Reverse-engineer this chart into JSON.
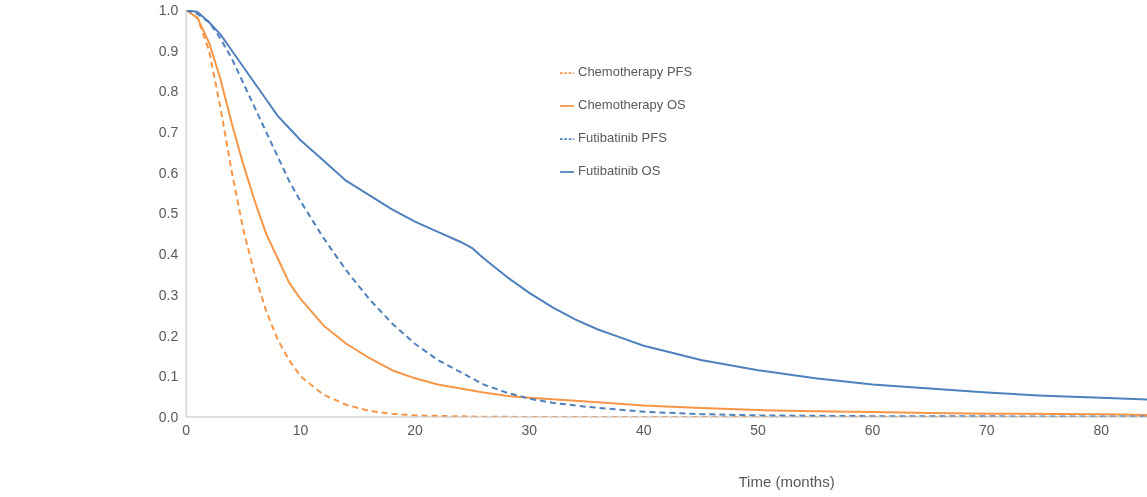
{
  "chart_data": {
    "type": "line",
    "xlabel": "Time (months)",
    "xlim": [
      0,
      84
    ],
    "xticks": [
      0,
      10,
      20,
      30,
      40,
      50,
      60,
      70,
      80
    ],
    "ylim": [
      0,
      1
    ],
    "yticks": [
      {
        "value": 0,
        "label": "0.0"
      },
      0.1,
      0.2,
      0.3,
      0.4,
      0.5,
      0.6,
      0.7,
      0.8,
      0.9,
      {
        "value": 1,
        "label": "1.0"
      }
    ],
    "legend": "top",
    "marker": "none",
    "series": [
      {
        "name": "Chemotherapy PFS",
        "color": "#f79646",
        "line_style": "dashed",
        "x": [
          0,
          1,
          2,
          3,
          4,
          5,
          6,
          7,
          8,
          9,
          10,
          12,
          14,
          16,
          18,
          20,
          25,
          30,
          84
        ],
        "values": [
          1.0,
          0.98,
          0.9,
          0.76,
          0.6,
          0.46,
          0.35,
          0.26,
          0.19,
          0.14,
          0.1,
          0.055,
          0.03,
          0.015,
          0.008,
          0.004,
          0.001,
          0,
          0
        ]
      },
      {
        "name": "Chemotherapy OS",
        "color": "#f79646",
        "line_style": "solid",
        "x": [
          0,
          1,
          2,
          3,
          4,
          5,
          6,
          7,
          8,
          9,
          10,
          12,
          14,
          16,
          18,
          20,
          22,
          24,
          26,
          28,
          30,
          35,
          40,
          45,
          50,
          55,
          60,
          65,
          70,
          80,
          84
        ],
        "values": [
          1.0,
          0.98,
          0.92,
          0.83,
          0.72,
          0.62,
          0.53,
          0.45,
          0.39,
          0.33,
          0.29,
          0.225,
          0.18,
          0.145,
          0.115,
          0.095,
          0.08,
          0.07,
          0.06,
          0.052,
          0.047,
          0.038,
          0.028,
          0.022,
          0.017,
          0.014,
          0.012,
          0.01,
          0.008,
          0.007,
          0.005
        ]
      },
      {
        "name": "Futibatinib PFS",
        "color": "#4f81bd",
        "line_style": "dashed",
        "x": [
          0,
          1,
          2,
          3,
          4,
          5,
          6,
          7,
          8,
          9,
          10,
          12,
          14,
          16,
          18,
          20,
          22,
          24,
          26,
          28,
          30,
          32,
          35,
          40,
          45,
          50,
          60,
          84
        ],
        "values": [
          1.0,
          0.99,
          0.97,
          0.93,
          0.88,
          0.82,
          0.76,
          0.7,
          0.64,
          0.58,
          0.53,
          0.44,
          0.36,
          0.29,
          0.23,
          0.18,
          0.14,
          0.11,
          0.08,
          0.06,
          0.045,
          0.035,
          0.025,
          0.013,
          0.007,
          0.004,
          0.002,
          0.001
        ]
      },
      {
        "name": "Futibatinib OS",
        "color": "#4f81bd",
        "line_style": "solid",
        "x": [
          0,
          1,
          2,
          3,
          4,
          5,
          6,
          7,
          8,
          9,
          10,
          12,
          14,
          16,
          18,
          20,
          22,
          24,
          25,
          26,
          28,
          30,
          32,
          34,
          36,
          38,
          40,
          45,
          50,
          55,
          60,
          65,
          70,
          75,
          80,
          84
        ],
        "values": [
          1.0,
          0.995,
          0.97,
          0.94,
          0.9,
          0.86,
          0.82,
          0.78,
          0.74,
          0.71,
          0.68,
          0.63,
          0.58,
          0.545,
          0.51,
          0.48,
          0.455,
          0.43,
          0.415,
          0.39,
          0.345,
          0.305,
          0.27,
          0.24,
          0.215,
          0.195,
          0.175,
          0.14,
          0.115,
          0.095,
          0.08,
          0.07,
          0.06,
          0.052,
          0.047,
          0.043
        ]
      }
    ]
  }
}
